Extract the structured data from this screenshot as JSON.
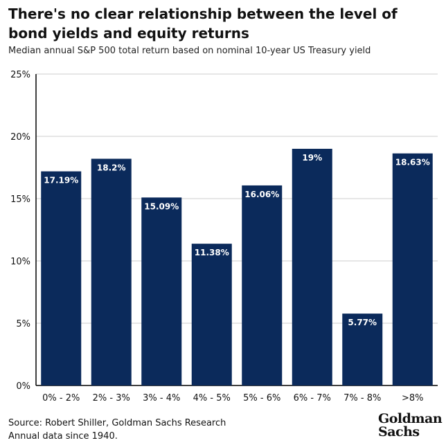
{
  "header": {
    "title": "There's no clear relationship between the level of bond yields and equity returns",
    "subtitle": "Median annual S&P 500 total return based on nominal 10-year US Treasury yield"
  },
  "footer": {
    "source": "Source: Robert Shiller, Goldman Sachs Research",
    "note": "Annual data since 1940."
  },
  "logo": {
    "line1": "Goldman",
    "line2": "Sachs"
  },
  "colors": {
    "bar": "#0b2a5b",
    "grid": "#cccccc",
    "axis": "#000000",
    "label": "#ffffff"
  },
  "chart_data": {
    "type": "bar",
    "categories": [
      "0% - 2%",
      "2% - 3%",
      "3% - 4%",
      "4% - 5%",
      "5% - 6%",
      "6% - 7%",
      "7% - 8%",
      ">8%"
    ],
    "values": [
      17.19,
      18.2,
      15.09,
      11.38,
      16.06,
      19,
      5.77,
      18.63
    ],
    "data_labels": [
      "17.19%",
      "18.2%",
      "15.09%",
      "11.38%",
      "16.06%",
      "19%",
      "5.77%",
      "18.63%"
    ],
    "y_ticks": [
      0,
      5,
      10,
      15,
      20,
      25
    ],
    "y_tick_labels": [
      "0%",
      "5%",
      "10%",
      "15%",
      "20%",
      "25%"
    ],
    "ylim": [
      0,
      25
    ],
    "xlabel": "",
    "ylabel": "",
    "grid": true
  }
}
